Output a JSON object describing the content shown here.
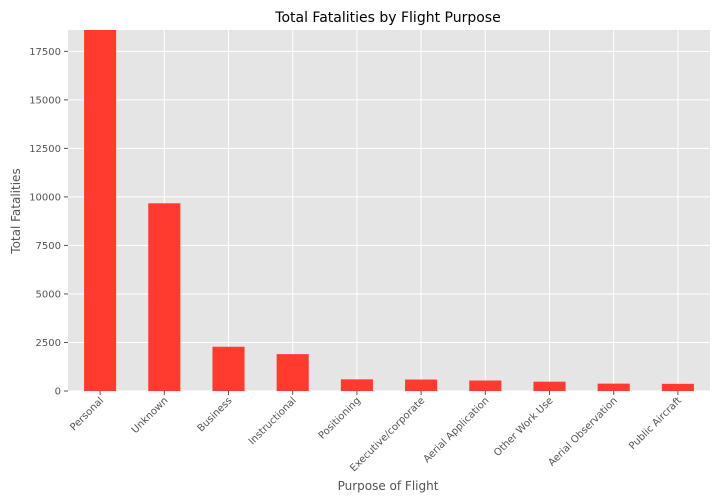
{
  "chart_data": {
    "type": "bar",
    "title": "Total Fatalities by Flight Purpose",
    "xlabel": "Purpose of Flight",
    "ylabel": "Total Fatalities",
    "categories": [
      "Personal",
      "Unknown",
      "Business",
      "Instructional",
      "Positioning",
      "Executive/corporate",
      "Aerial Application",
      "Other Work Use",
      "Aerial Observation",
      "Public Aircraft"
    ],
    "values": [
      18680,
      9670,
      2280,
      1900,
      600,
      590,
      540,
      480,
      380,
      370
    ],
    "ylim": [
      0,
      18600
    ],
    "yticks": [
      0,
      2500,
      5000,
      7500,
      10000,
      12500,
      15000,
      17500
    ],
    "grid": true,
    "legend": "none",
    "colors": {
      "bar": "#ff3b30",
      "plot_bg": "#e5e5e5",
      "grid": "#ffffff"
    }
  }
}
